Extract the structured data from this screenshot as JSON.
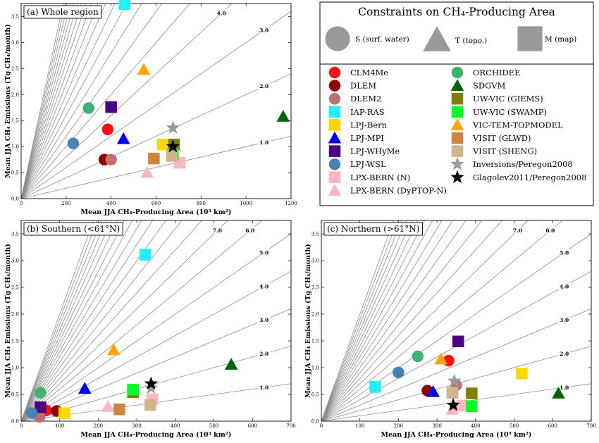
{
  "legend": {
    "title": "Constraints on CH₄-Producing Area",
    "symbols": [
      {
        "shape": "circle",
        "label": "S (surf. water)"
      },
      {
        "shape": "triangle",
        "label": "T (topo.)"
      },
      {
        "shape": "square",
        "label": "M (map)"
      }
    ],
    "models": [
      {
        "name": "CLM4Me",
        "shape": "circle",
        "color": "#ff1111"
      },
      {
        "name": "DLEM",
        "shape": "circle",
        "color": "#8b0000"
      },
      {
        "name": "DLEM2",
        "shape": "circle",
        "color": "#bc7070"
      },
      {
        "name": "IAP-RAS",
        "shape": "square",
        "color": "#22eeff"
      },
      {
        "name": "LPJ-Bern",
        "shape": "square",
        "color": "#ffd700"
      },
      {
        "name": "LPJ-MPI",
        "shape": "triangle",
        "color": "#0000ee"
      },
      {
        "name": "LPJ-WHyMe",
        "shape": "square",
        "color": "#4b0082"
      },
      {
        "name": "LPJ-WSL",
        "shape": "circle",
        "color": "#4682b4"
      },
      {
        "name": "LPX-BERN (N)",
        "shape": "square",
        "color": "#ffb6c1"
      },
      {
        "name": "LPX-BERN (DyPTOP-N)",
        "shape": "triangle",
        "color": "#ffb6c1"
      },
      {
        "name": "ORCHIDEE",
        "shape": "circle",
        "color": "#3cb371"
      },
      {
        "name": "SDGVM",
        "shape": "triangle",
        "color": "#006400"
      },
      {
        "name": "UW-VIC (GIEMS)",
        "shape": "square",
        "color": "#808000"
      },
      {
        "name": "UW-VIC (SWAMP)",
        "shape": "square",
        "color": "#00ff22"
      },
      {
        "name": "VIC-TEM-TOPMODEL",
        "shape": "triangle",
        "color": "#ffa500"
      },
      {
        "name": "VISIT (GLWD)",
        "shape": "square",
        "color": "#cd853f"
      },
      {
        "name": "VISIT (SHENG)",
        "shape": "square",
        "color": "#d2b48c"
      },
      {
        "name": "Inversions/Peregon2008",
        "shape": "star",
        "color": "#999999"
      },
      {
        "name": "Glagolev2011/Peregon2008",
        "shape": "star",
        "color": "#000000"
      }
    ]
  },
  "chart_data": [
    {
      "type": "scatter",
      "title": "(a) Whole region",
      "xlabel": "Mean JJA CH₄-Producing Area (10³ km²)",
      "ylabel": "Mean JJA CH₄ Emissions (Tg CH₄/month)",
      "xlim": [
        0,
        1200
      ],
      "ylim": [
        0,
        3.75
      ],
      "xticks": [
        0,
        200,
        400,
        600,
        800,
        1000,
        1200
      ],
      "yticks": [
        0.0,
        0.5,
        1.0,
        1.5,
        2.0,
        2.5,
        3.0,
        3.5
      ],
      "ray_slopes": [
        1,
        2,
        3,
        4,
        5,
        6,
        7,
        8,
        9,
        10,
        11,
        12,
        13,
        14,
        15,
        16,
        17,
        18,
        19,
        20
      ],
      "ray_labels": [
        "1.0",
        "2.0",
        "3.0",
        "4.0"
      ],
      "points": [
        {
          "model": "CLM4Me",
          "x": 385,
          "y": 1.33
        },
        {
          "model": "DLEM",
          "x": 370,
          "y": 0.75
        },
        {
          "model": "DLEM2",
          "x": 400,
          "y": 0.75
        },
        {
          "model": "IAP-RAS",
          "x": 460,
          "y": 3.74
        },
        {
          "model": "LPJ-Bern",
          "x": 630,
          "y": 1.04
        },
        {
          "model": "LPJ-MPI",
          "x": 455,
          "y": 1.15
        },
        {
          "model": "LPJ-WHyMe",
          "x": 400,
          "y": 1.76
        },
        {
          "model": "LPJ-WSL",
          "x": 232,
          "y": 1.06
        },
        {
          "model": "LPX-BERN (N)",
          "x": 705,
          "y": 0.69
        },
        {
          "model": "LPX-BERN (DyPTOP-N)",
          "x": 560,
          "y": 0.5
        },
        {
          "model": "ORCHIDEE",
          "x": 300,
          "y": 1.74
        },
        {
          "model": "SDGVM",
          "x": 1165,
          "y": 1.58
        },
        {
          "model": "UW-VIC (GIEMS)",
          "x": 680,
          "y": 1.04
        },
        {
          "model": "UW-VIC (SWAMP)",
          "x": 675,
          "y": 0.85
        },
        {
          "model": "VIC-TEM-TOPMODEL",
          "x": 545,
          "y": 2.48
        },
        {
          "model": "VISIT (GLWD)",
          "x": 590,
          "y": 0.77
        },
        {
          "model": "VISIT (SHENG)",
          "x": 670,
          "y": 0.82
        },
        {
          "model": "Inversions/Peregon2008",
          "x": 675,
          "y": 1.36
        },
        {
          "model": "Glagolev2011/Peregon2008",
          "x": 675,
          "y": 1.0
        }
      ]
    },
    {
      "type": "scatter",
      "title": "(b) Southern (<61°N)",
      "xlabel": "Mean JJA CH₄-Producing Area (10³ km²)",
      "ylabel": "Mean JJA CH₄ Emissions (Tg CH₄/month)",
      "xlim": [
        0,
        700
      ],
      "ylim": [
        0,
        3.75
      ],
      "xticks": [
        0,
        100,
        200,
        300,
        400,
        500,
        600,
        700
      ],
      "yticks": [
        0.0,
        0.5,
        1.0,
        1.5,
        2.0,
        2.5,
        3.0,
        3.5
      ],
      "ray_slopes": [
        1,
        2,
        3,
        4,
        5,
        6,
        7,
        8,
        9,
        10,
        11,
        12,
        13,
        14,
        15,
        16,
        17,
        18,
        19,
        20
      ],
      "ray_labels": [
        "1.0",
        "2.0",
        "3.0",
        "4.0",
        "5.0",
        "6.0",
        "7.0"
      ],
      "points": [
        {
          "model": "CLM4Me",
          "x": 65,
          "y": 0.2
        },
        {
          "model": "DLEM",
          "x": 92,
          "y": 0.19
        },
        {
          "model": "DLEM2",
          "x": 48,
          "y": 0.08
        },
        {
          "model": "IAP-RAS",
          "x": 322,
          "y": 3.11
        },
        {
          "model": "LPJ-Bern",
          "x": 112,
          "y": 0.15
        },
        {
          "model": "LPJ-MPI",
          "x": 165,
          "y": 0.61
        },
        {
          "model": "LPJ-WHyMe",
          "x": 50,
          "y": 0.26
        },
        {
          "model": "LPJ-WSL",
          "x": 28,
          "y": 0.15
        },
        {
          "model": "LPX-BERN (N)",
          "x": 340,
          "y": 0.41
        },
        {
          "model": "LPX-BERN (DyPTOP-N)",
          "x": 225,
          "y": 0.27
        },
        {
          "model": "ORCHIDEE",
          "x": 50,
          "y": 0.53
        },
        {
          "model": "SDGVM",
          "x": 545,
          "y": 1.06
        },
        {
          "model": "UW-VIC (GIEMS)",
          "x": 290,
          "y": 0.54
        },
        {
          "model": "UW-VIC (SWAMP)",
          "x": 290,
          "y": 0.59
        },
        {
          "model": "VIC-TEM-TOPMODEL",
          "x": 240,
          "y": 1.33
        },
        {
          "model": "VISIT (GLWD)",
          "x": 255,
          "y": 0.22
        },
        {
          "model": "VISIT (SHENG)",
          "x": 335,
          "y": 0.3
        },
        {
          "model": "Inversions/Peregon2008",
          "x": 337,
          "y": 0.62
        },
        {
          "model": "Glagolev2011/Peregon2008",
          "x": 337,
          "y": 0.7
        }
      ]
    },
    {
      "type": "scatter",
      "title": "(c) Northern (>61°N)",
      "xlabel": "Mean JJA CH₄-Producing Area (10³ km²)",
      "ylabel": "Mean JJA CH₄ Emissions (Tg CH₄/month)",
      "xlim": [
        0,
        700
      ],
      "ylim": [
        0,
        3.75
      ],
      "xticks": [
        0,
        100,
        200,
        300,
        400,
        500,
        600,
        700
      ],
      "yticks": [
        0.0,
        0.5,
        1.0,
        1.5,
        2.0,
        2.5,
        3.0,
        3.5
      ],
      "ray_slopes": [
        1,
        2,
        3,
        4,
        5,
        6,
        7,
        8,
        9,
        10,
        11,
        12,
        13,
        14,
        15,
        16,
        17,
        18,
        19,
        20
      ],
      "ray_labels": [
        "1.0",
        "2.0",
        "3.0",
        "4.0",
        "5.0",
        "6.0",
        "7.0"
      ],
      "points": [
        {
          "model": "CLM4Me",
          "x": 330,
          "y": 1.13
        },
        {
          "model": "DLEM",
          "x": 275,
          "y": 0.57
        },
        {
          "model": "DLEM2",
          "x": 350,
          "y": 0.67
        },
        {
          "model": "IAP-RAS",
          "x": 140,
          "y": 0.64
        },
        {
          "model": "LPJ-Bern",
          "x": 520,
          "y": 0.89
        },
        {
          "model": "LPJ-MPI",
          "x": 290,
          "y": 0.55
        },
        {
          "model": "LPJ-WHyMe",
          "x": 355,
          "y": 1.49
        },
        {
          "model": "LPJ-WSL",
          "x": 200,
          "y": 0.91
        },
        {
          "model": "LPX-BERN (N)",
          "x": 365,
          "y": 0.29
        },
        {
          "model": "LPX-BERN (DyPTOP-N)",
          "x": 340,
          "y": 0.22
        },
        {
          "model": "ORCHIDEE",
          "x": 250,
          "y": 1.21
        },
        {
          "model": "SDGVM",
          "x": 615,
          "y": 0.52
        },
        {
          "model": "UW-VIC (GIEMS)",
          "x": 390,
          "y": 0.52
        },
        {
          "model": "UW-VIC (SWAMP)",
          "x": 390,
          "y": 0.28
        },
        {
          "model": "VIC-TEM-TOPMODEL",
          "x": 310,
          "y": 1.16
        },
        {
          "model": "VISIT (GLWD)",
          "x": 340,
          "y": 0.53
        },
        {
          "model": "VISIT (SHENG)",
          "x": 340,
          "y": 0.53
        },
        {
          "model": "Inversions/Peregon2008",
          "x": 345,
          "y": 0.75
        },
        {
          "model": "Glagolev2011/Peregon2008",
          "x": 342,
          "y": 0.3
        }
      ]
    }
  ]
}
